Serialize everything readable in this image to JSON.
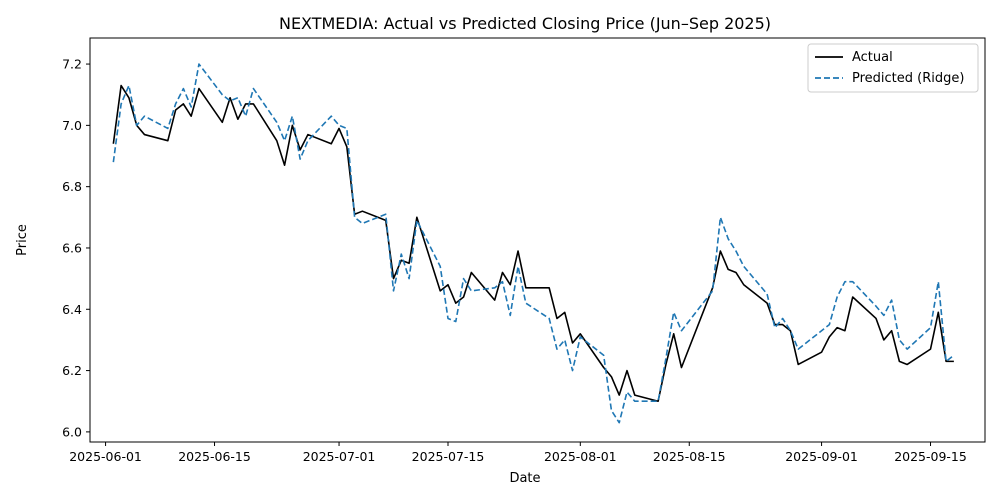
{
  "chart_data": {
    "type": "line",
    "title": "NEXTMEDIA: Actual vs Predicted Closing Price (Jun–Sep 2025)",
    "xlabel": "Date",
    "ylabel": "Price",
    "x_ticks": [
      "2025-06-01",
      "2025-06-15",
      "2025-07-01",
      "2025-07-15",
      "2025-08-01",
      "2025-08-15",
      "2025-09-01",
      "2025-09-15"
    ],
    "y_ticks": [
      "6.0",
      "6.2",
      "6.4",
      "6.6",
      "6.8",
      "7.0",
      "7.2"
    ],
    "xlim": [
      "2025-05-30",
      "2025-09-22"
    ],
    "ylim": [
      5.967,
      7.285
    ],
    "legend_position": "top-right",
    "grid": false,
    "series": [
      {
        "name": "Actual",
        "color": "#000000",
        "style": "solid",
        "points": [
          [
            "2025-06-02",
            6.94
          ],
          [
            "2025-06-03",
            7.13
          ],
          [
            "2025-06-04",
            7.09
          ],
          [
            "2025-06-05",
            7.0
          ],
          [
            "2025-06-06",
            6.97
          ],
          [
            "2025-06-09",
            6.95
          ],
          [
            "2025-06-10",
            7.05
          ],
          [
            "2025-06-11",
            7.07
          ],
          [
            "2025-06-12",
            7.03
          ],
          [
            "2025-06-13",
            7.12
          ],
          [
            "2025-06-16",
            7.01
          ],
          [
            "2025-06-17",
            7.09
          ],
          [
            "2025-06-18",
            7.02
          ],
          [
            "2025-06-19",
            7.07
          ],
          [
            "2025-06-20",
            7.07
          ],
          [
            "2025-06-23",
            6.95
          ],
          [
            "2025-06-24",
            6.87
          ],
          [
            "2025-06-25",
            7.0
          ],
          [
            "2025-06-26",
            6.92
          ],
          [
            "2025-06-27",
            6.97
          ],
          [
            "2025-06-30",
            6.94
          ],
          [
            "2025-07-01",
            6.99
          ],
          [
            "2025-07-02",
            6.93
          ],
          [
            "2025-07-03",
            6.71
          ],
          [
            "2025-07-04",
            6.72
          ],
          [
            "2025-07-07",
            6.69
          ],
          [
            "2025-07-08",
            6.5
          ],
          [
            "2025-07-09",
            6.56
          ],
          [
            "2025-07-10",
            6.55
          ],
          [
            "2025-07-11",
            6.7
          ],
          [
            "2025-07-14",
            6.46
          ],
          [
            "2025-07-15",
            6.48
          ],
          [
            "2025-07-16",
            6.42
          ],
          [
            "2025-07-17",
            6.44
          ],
          [
            "2025-07-18",
            6.52
          ],
          [
            "2025-07-21",
            6.43
          ],
          [
            "2025-07-22",
            6.52
          ],
          [
            "2025-07-23",
            6.48
          ],
          [
            "2025-07-24",
            6.59
          ],
          [
            "2025-07-25",
            6.47
          ],
          [
            "2025-07-28",
            6.47
          ],
          [
            "2025-07-29",
            6.37
          ],
          [
            "2025-07-30",
            6.39
          ],
          [
            "2025-07-31",
            6.29
          ],
          [
            "2025-08-01",
            6.32
          ],
          [
            "2025-08-04",
            6.21
          ],
          [
            "2025-08-05",
            6.18
          ],
          [
            "2025-08-06",
            6.12
          ],
          [
            "2025-08-07",
            6.2
          ],
          [
            "2025-08-08",
            6.12
          ],
          [
            "2025-08-11",
            6.1
          ],
          [
            "2025-08-12",
            6.22
          ],
          [
            "2025-08-13",
            6.32
          ],
          [
            "2025-08-14",
            6.21
          ],
          [
            "2025-08-18",
            6.47
          ],
          [
            "2025-08-19",
            6.59
          ],
          [
            "2025-08-20",
            6.53
          ],
          [
            "2025-08-21",
            6.52
          ],
          [
            "2025-08-22",
            6.48
          ],
          [
            "2025-08-25",
            6.42
          ],
          [
            "2025-08-26",
            6.35
          ],
          [
            "2025-08-27",
            6.35
          ],
          [
            "2025-08-28",
            6.33
          ],
          [
            "2025-08-29",
            6.22
          ],
          [
            "2025-09-01",
            6.26
          ],
          [
            "2025-09-02",
            6.31
          ],
          [
            "2025-09-03",
            6.34
          ],
          [
            "2025-09-04",
            6.33
          ],
          [
            "2025-09-05",
            6.44
          ],
          [
            "2025-09-08",
            6.37
          ],
          [
            "2025-09-09",
            6.3
          ],
          [
            "2025-09-10",
            6.33
          ],
          [
            "2025-09-11",
            6.23
          ],
          [
            "2025-09-12",
            6.22
          ],
          [
            "2025-09-15",
            6.27
          ],
          [
            "2025-09-16",
            6.39
          ],
          [
            "2025-09-17",
            6.23
          ],
          [
            "2025-09-18",
            6.23
          ]
        ]
      },
      {
        "name": "Predicted (Ridge)",
        "color": "#1f77b4",
        "style": "dashed",
        "points": [
          [
            "2025-06-02",
            6.88
          ],
          [
            "2025-06-03",
            7.07
          ],
          [
            "2025-06-04",
            7.13
          ],
          [
            "2025-06-05",
            7.0
          ],
          [
            "2025-06-06",
            7.03
          ],
          [
            "2025-06-09",
            6.99
          ],
          [
            "2025-06-10",
            7.07
          ],
          [
            "2025-06-11",
            7.12
          ],
          [
            "2025-06-12",
            7.06
          ],
          [
            "2025-06-13",
            7.2
          ],
          [
            "2025-06-16",
            7.1
          ],
          [
            "2025-06-17",
            7.08
          ],
          [
            "2025-06-18",
            7.09
          ],
          [
            "2025-06-19",
            7.03
          ],
          [
            "2025-06-20",
            7.12
          ],
          [
            "2025-06-23",
            7.01
          ],
          [
            "2025-06-24",
            6.95
          ],
          [
            "2025-06-25",
            7.03
          ],
          [
            "2025-06-26",
            6.89
          ],
          [
            "2025-06-27",
            6.95
          ],
          [
            "2025-06-30",
            7.03
          ],
          [
            "2025-07-01",
            7.0
          ],
          [
            "2025-07-02",
            6.99
          ],
          [
            "2025-07-03",
            6.7
          ],
          [
            "2025-07-04",
            6.68
          ],
          [
            "2025-07-07",
            6.71
          ],
          [
            "2025-07-08",
            6.46
          ],
          [
            "2025-07-09",
            6.58
          ],
          [
            "2025-07-10",
            6.5
          ],
          [
            "2025-07-11",
            6.69
          ],
          [
            "2025-07-14",
            6.54
          ],
          [
            "2025-07-15",
            6.37
          ],
          [
            "2025-07-16",
            6.36
          ],
          [
            "2025-07-17",
            6.5
          ],
          [
            "2025-07-18",
            6.46
          ],
          [
            "2025-07-21",
            6.47
          ],
          [
            "2025-07-22",
            6.49
          ],
          [
            "2025-07-23",
            6.38
          ],
          [
            "2025-07-24",
            6.54
          ],
          [
            "2025-07-25",
            6.42
          ],
          [
            "2025-07-28",
            6.37
          ],
          [
            "2025-07-29",
            6.27
          ],
          [
            "2025-07-30",
            6.3
          ],
          [
            "2025-07-31",
            6.2
          ],
          [
            "2025-08-01",
            6.31
          ],
          [
            "2025-08-04",
            6.25
          ],
          [
            "2025-08-05",
            6.07
          ],
          [
            "2025-08-06",
            6.03
          ],
          [
            "2025-08-07",
            6.13
          ],
          [
            "2025-08-08",
            6.1
          ],
          [
            "2025-08-11",
            6.1
          ],
          [
            "2025-08-12",
            6.24
          ],
          [
            "2025-08-13",
            6.39
          ],
          [
            "2025-08-14",
            6.33
          ],
          [
            "2025-08-18",
            6.46
          ],
          [
            "2025-08-19",
            6.7
          ],
          [
            "2025-08-20",
            6.63
          ],
          [
            "2025-08-21",
            6.59
          ],
          [
            "2025-08-22",
            6.54
          ],
          [
            "2025-08-25",
            6.45
          ],
          [
            "2025-08-26",
            6.34
          ],
          [
            "2025-08-27",
            6.37
          ],
          [
            "2025-08-28",
            6.33
          ],
          [
            "2025-08-29",
            6.27
          ],
          [
            "2025-09-01",
            6.33
          ],
          [
            "2025-09-02",
            6.35
          ],
          [
            "2025-09-03",
            6.44
          ],
          [
            "2025-09-04",
            6.49
          ],
          [
            "2025-09-05",
            6.49
          ],
          [
            "2025-09-08",
            6.41
          ],
          [
            "2025-09-09",
            6.38
          ],
          [
            "2025-09-10",
            6.43
          ],
          [
            "2025-09-11",
            6.3
          ],
          [
            "2025-09-12",
            6.27
          ],
          [
            "2025-09-15",
            6.34
          ],
          [
            "2025-09-16",
            6.49
          ],
          [
            "2025-09-17",
            6.23
          ],
          [
            "2025-09-18",
            6.25
          ]
        ]
      }
    ]
  }
}
